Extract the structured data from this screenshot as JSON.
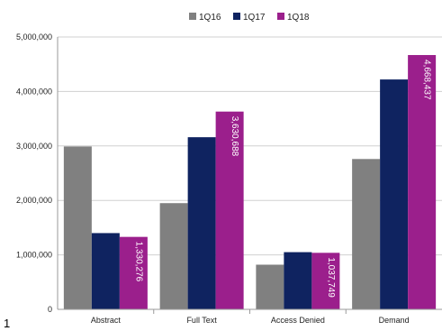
{
  "chart_data": {
    "type": "bar",
    "categories": [
      "Abstract",
      "Full Text",
      "Access Denied",
      "Demand"
    ],
    "series": [
      {
        "name": "1Q16",
        "color": "#808080",
        "values": [
          2990000,
          1950000,
          820000,
          2760000
        ]
      },
      {
        "name": "1Q17",
        "color": "#0f2360",
        "values": [
          1400000,
          3160000,
          1050000,
          4220000
        ]
      },
      {
        "name": "1Q18",
        "color": "#9b1f8c",
        "values": [
          1330276,
          3630688,
          1037749,
          4668437
        ]
      }
    ],
    "data_labels": {
      "series": "1Q18",
      "text": [
        "1,330,276",
        "3,630,688",
        "1,037,749",
        "4,668,437"
      ]
    },
    "y_ticks": [
      "0",
      "1,000,000",
      "2,000,000",
      "3,000,000",
      "4,000,000",
      "5,000,000"
    ],
    "ylim": [
      0,
      5000000
    ],
    "grid": true,
    "legend_position": "top",
    "title": "",
    "xlabel": "",
    "ylabel": ""
  },
  "footnote": "1"
}
